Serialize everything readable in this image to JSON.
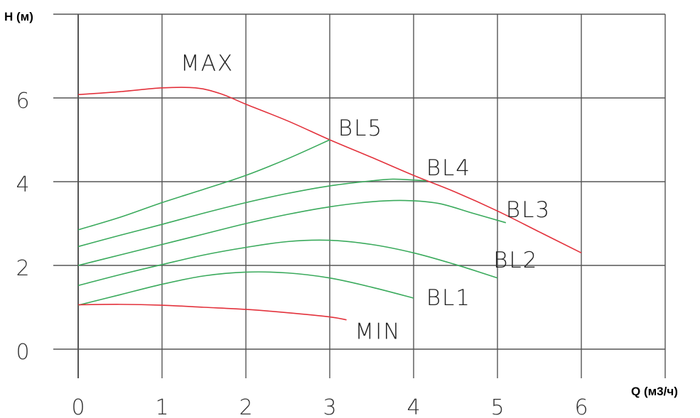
{
  "chart_data": {
    "type": "line",
    "title": "",
    "xlabel": "Q (м3/ч)",
    "ylabel": "H (м)",
    "xlim": [
      0,
      7
    ],
    "ylim": [
      -0.5,
      8.3
    ],
    "x_ticks": [
      "0",
      "1",
      "2",
      "3",
      "4",
      "5",
      "6"
    ],
    "y_ticks": [
      "0",
      "2",
      "4",
      "6"
    ],
    "grid": true,
    "series": [
      {
        "name": "MAX",
        "color": "#e3323c",
        "label_at": [
          1.22,
          6.65
        ],
        "points": [
          [
            0,
            6.08
          ],
          [
            0.5,
            6.15
          ],
          [
            1.0,
            6.24
          ],
          [
            1.4,
            6.24
          ],
          [
            1.7,
            6.1
          ],
          [
            2.0,
            5.85
          ],
          [
            2.5,
            5.45
          ],
          [
            3.0,
            5.0
          ],
          [
            3.5,
            4.58
          ],
          [
            4.0,
            4.15
          ],
          [
            4.5,
            3.75
          ],
          [
            5.0,
            3.3
          ],
          [
            5.5,
            2.8
          ],
          [
            6.0,
            2.3
          ]
        ]
      },
      {
        "name": "BL5",
        "color": "#3aaa5c",
        "label_at": [
          3.1,
          5.1
        ],
        "points": [
          [
            0,
            2.85
          ],
          [
            0.5,
            3.15
          ],
          [
            1.0,
            3.5
          ],
          [
            1.5,
            3.82
          ],
          [
            2.0,
            4.15
          ],
          [
            2.5,
            4.55
          ],
          [
            3.0,
            5.0
          ]
        ]
      },
      {
        "name": "BL4",
        "color": "#3aaa5c",
        "label_at": [
          4.15,
          4.15
        ],
        "points": [
          [
            0,
            2.45
          ],
          [
            0.5,
            2.72
          ],
          [
            1.0,
            2.98
          ],
          [
            1.5,
            3.25
          ],
          [
            2.0,
            3.5
          ],
          [
            2.5,
            3.72
          ],
          [
            3.0,
            3.9
          ],
          [
            3.5,
            4.02
          ],
          [
            3.75,
            4.06
          ],
          [
            4.0,
            4.04
          ],
          [
            4.15,
            4.02
          ]
        ]
      },
      {
        "name": "BL3",
        "color": "#3aaa5c",
        "label_at": [
          5.1,
          3.15
        ],
        "points": [
          [
            0,
            2.0
          ],
          [
            0.5,
            2.25
          ],
          [
            1.0,
            2.5
          ],
          [
            1.5,
            2.75
          ],
          [
            2.0,
            3.0
          ],
          [
            2.5,
            3.22
          ],
          [
            3.0,
            3.4
          ],
          [
            3.5,
            3.52
          ],
          [
            3.9,
            3.55
          ],
          [
            4.3,
            3.48
          ],
          [
            4.7,
            3.25
          ],
          [
            5.1,
            3.02
          ]
        ]
      },
      {
        "name": "BL2",
        "color": "#3aaa5c",
        "label_at": [
          4.95,
          1.95
        ],
        "points": [
          [
            0,
            1.52
          ],
          [
            0.5,
            1.78
          ],
          [
            1.0,
            2.02
          ],
          [
            1.5,
            2.25
          ],
          [
            2.0,
            2.43
          ],
          [
            2.5,
            2.57
          ],
          [
            3.0,
            2.6
          ],
          [
            3.5,
            2.5
          ],
          [
            4.0,
            2.3
          ],
          [
            4.5,
            2.02
          ],
          [
            5.0,
            1.7
          ]
        ]
      },
      {
        "name": "BL1",
        "color": "#3aaa5c",
        "label_at": [
          4.15,
          1.05
        ],
        "points": [
          [
            0,
            1.05
          ],
          [
            0.5,
            1.3
          ],
          [
            1.0,
            1.55
          ],
          [
            1.5,
            1.75
          ],
          [
            2.0,
            1.84
          ],
          [
            2.5,
            1.82
          ],
          [
            3.0,
            1.7
          ],
          [
            3.5,
            1.48
          ],
          [
            4.0,
            1.22
          ]
        ]
      },
      {
        "name": "MIN",
        "color": "#e3323c",
        "label_at": [
          3.3,
          0.25
        ],
        "points": [
          [
            0,
            1.06
          ],
          [
            0.5,
            1.07
          ],
          [
            1.0,
            1.05
          ],
          [
            1.5,
            1.0
          ],
          [
            2.0,
            0.95
          ],
          [
            2.5,
            0.87
          ],
          [
            3.0,
            0.77
          ],
          [
            3.2,
            0.7
          ]
        ]
      }
    ]
  }
}
